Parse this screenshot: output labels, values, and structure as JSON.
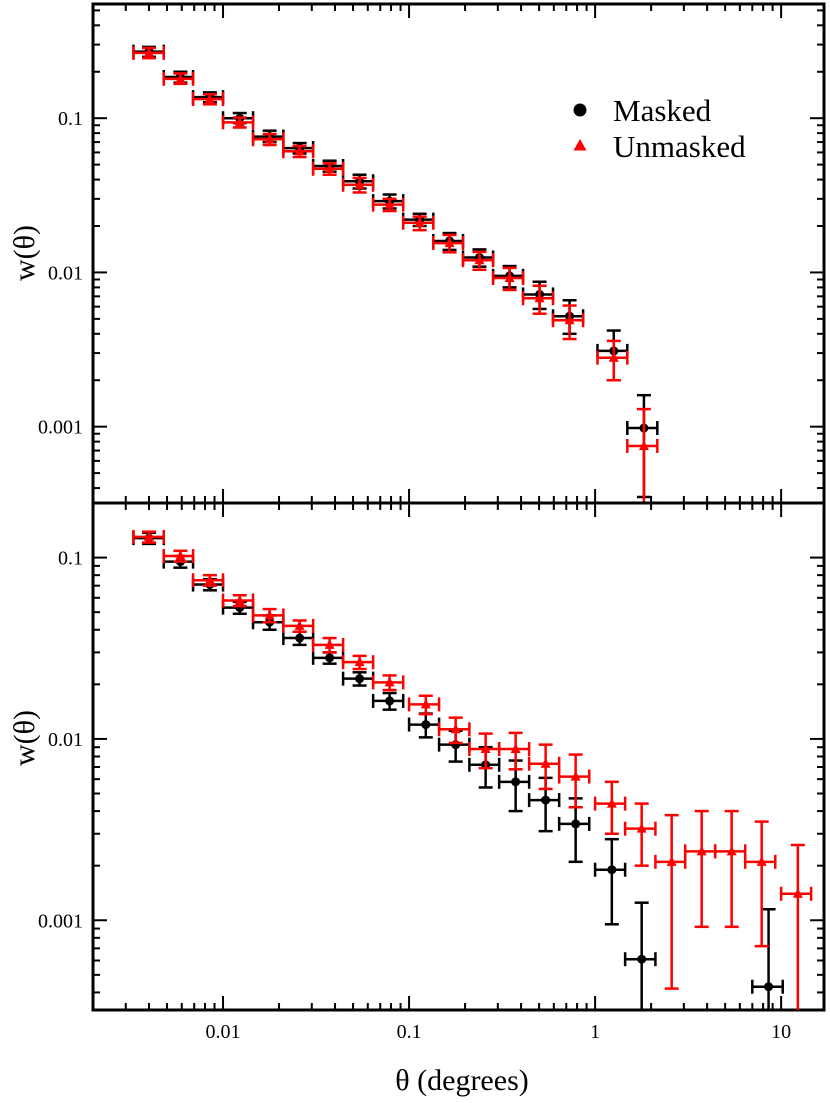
{
  "figure": {
    "xlabel": "θ (degrees)"
  },
  "legend": {
    "entries": [
      {
        "label": "Masked",
        "color": "#000000",
        "marker": "circle"
      },
      {
        "label": "Unmasked",
        "color": "#ff0000",
        "marker": "triangle"
      }
    ]
  },
  "chart_data": [
    {
      "type": "scatter",
      "panel": "top",
      "title": "",
      "xlabel": "θ (degrees)",
      "ylabel": "w(θ)",
      "xscale": "log",
      "yscale": "log",
      "xlim": [
        0.002,
        17
      ],
      "ylim": [
        0.00032,
        0.55
      ],
      "xticks": [
        {
          "value": 0.01,
          "label": "0.01"
        },
        {
          "value": 0.1,
          "label": "0.1"
        },
        {
          "value": 1,
          "label": "1"
        },
        {
          "value": 10,
          "label": "10"
        }
      ],
      "yticks": [
        {
          "value": 0.001,
          "label": "0.001"
        },
        {
          "value": 0.01,
          "label": "0.01"
        },
        {
          "value": 0.1,
          "label": "0.1"
        }
      ],
      "legend_position": "top-right",
      "series": [
        {
          "name": "Masked",
          "color": "#000000",
          "marker": "circle",
          "x": [
            0.004,
            0.0059,
            0.0085,
            0.0123,
            0.0178,
            0.0258,
            0.0374,
            0.0542,
            0.0786,
            0.114,
            0.165,
            0.239,
            0.347,
            0.503,
            0.729,
            1.26,
            1.83
          ],
          "y": [
            0.27,
            0.185,
            0.137,
            0.1,
            0.076,
            0.064,
            0.049,
            0.039,
            0.029,
            0.022,
            0.016,
            0.0125,
            0.0095,
            0.0072,
            0.0052,
            0.0031,
            0.00098
          ],
          "yerr_low": [
            0.25,
            0.17,
            0.127,
            0.093,
            0.07,
            0.059,
            0.045,
            0.035,
            0.026,
            0.02,
            0.014,
            0.0109,
            0.008,
            0.0058,
            0.004,
            0.002,
            0.00035
          ],
          "yerr_high": [
            0.29,
            0.2,
            0.147,
            0.108,
            0.083,
            0.069,
            0.053,
            0.043,
            0.032,
            0.024,
            0.018,
            0.0141,
            0.011,
            0.0087,
            0.0066,
            0.0042,
            0.0016
          ],
          "xerr_low": [
            0.0033,
            0.0048,
            0.0069,
            0.01,
            0.0145,
            0.0211,
            0.0305,
            0.0442,
            0.0641,
            0.093,
            0.135,
            0.195,
            0.283,
            0.41,
            0.594,
            1.03,
            1.49
          ],
          "xerr_high": [
            0.0048,
            0.0069,
            0.01,
            0.0145,
            0.0211,
            0.0305,
            0.0442,
            0.0641,
            0.093,
            0.135,
            0.195,
            0.283,
            0.41,
            0.594,
            0.862,
            1.49,
            2.16
          ]
        },
        {
          "name": "Unmasked",
          "color": "#ff0000",
          "marker": "triangle",
          "x": [
            0.004,
            0.0059,
            0.0085,
            0.0123,
            0.0178,
            0.0258,
            0.0374,
            0.0542,
            0.0786,
            0.114,
            0.165,
            0.239,
            0.347,
            0.503,
            0.729,
            1.26,
            1.83
          ],
          "y": [
            0.265,
            0.18,
            0.133,
            0.094,
            0.073,
            0.061,
            0.047,
            0.037,
            0.0275,
            0.021,
            0.0155,
            0.012,
            0.0092,
            0.0068,
            0.0049,
            0.0028,
            0.00075
          ],
          "yerr_low": [
            0.245,
            0.167,
            0.123,
            0.087,
            0.067,
            0.056,
            0.043,
            0.033,
            0.025,
            0.0188,
            0.0135,
            0.0104,
            0.0077,
            0.0054,
            0.0037,
            0.002,
            0.00032
          ],
          "yerr_high": [
            0.285,
            0.195,
            0.143,
            0.101,
            0.079,
            0.066,
            0.051,
            0.041,
            0.03,
            0.023,
            0.0175,
            0.0136,
            0.0107,
            0.0082,
            0.0061,
            0.0036,
            0.0013
          ],
          "xerr_low": [
            0.0033,
            0.0048,
            0.0069,
            0.01,
            0.0145,
            0.0211,
            0.0305,
            0.0442,
            0.0641,
            0.093,
            0.135,
            0.195,
            0.283,
            0.41,
            0.594,
            1.03,
            1.49
          ],
          "xerr_high": [
            0.0048,
            0.0069,
            0.01,
            0.0145,
            0.0211,
            0.0305,
            0.0442,
            0.0641,
            0.093,
            0.135,
            0.195,
            0.283,
            0.41,
            0.594,
            0.862,
            1.49,
            2.16
          ]
        }
      ]
    },
    {
      "type": "scatter",
      "panel": "bottom",
      "title": "",
      "xlabel": "θ (degrees)",
      "ylabel": "w(θ)",
      "xscale": "log",
      "yscale": "log",
      "xlim": [
        0.002,
        17
      ],
      "ylim": [
        0.00032,
        0.2
      ],
      "xticks": [
        {
          "value": 0.01,
          "label": "0.01"
        },
        {
          "value": 0.1,
          "label": "0.1"
        },
        {
          "value": 1,
          "label": "1"
        },
        {
          "value": 10,
          "label": "10"
        }
      ],
      "yticks": [
        {
          "value": 0.001,
          "label": "0.001"
        },
        {
          "value": 0.01,
          "label": "0.01"
        },
        {
          "value": 0.1,
          "label": "0.1"
        }
      ],
      "series": [
        {
          "name": "Masked",
          "color": "#000000",
          "marker": "circle",
          "x": [
            0.004,
            0.0059,
            0.0085,
            0.0123,
            0.0178,
            0.0258,
            0.0374,
            0.0542,
            0.0786,
            0.123,
            0.178,
            0.258,
            0.374,
            0.542,
            0.786,
            1.23,
            1.78,
            8.56
          ],
          "y": [
            0.128,
            0.095,
            0.071,
            0.053,
            0.044,
            0.036,
            0.028,
            0.0215,
            0.0162,
            0.012,
            0.0093,
            0.0072,
            0.0058,
            0.0046,
            0.0034,
            0.0019,
            0.00061,
            0.00043
          ],
          "yerr_low": [
            0.119,
            0.088,
            0.066,
            0.049,
            0.04,
            0.033,
            0.026,
            0.0197,
            0.0145,
            0.0102,
            0.0075,
            0.0054,
            0.004,
            0.0031,
            0.0021,
            0.00095,
            0.00032,
            0.00032
          ],
          "yerr_high": [
            0.137,
            0.102,
            0.076,
            0.057,
            0.048,
            0.039,
            0.03,
            0.0233,
            0.0179,
            0.0138,
            0.0111,
            0.009,
            0.0076,
            0.0061,
            0.0047,
            0.0028,
            0.00125,
            0.00115
          ],
          "xerr_low": [
            0.0033,
            0.0048,
            0.0069,
            0.01,
            0.0145,
            0.0211,
            0.0305,
            0.0442,
            0.0641,
            0.1,
            0.145,
            0.211,
            0.305,
            0.442,
            0.641,
            1.0,
            1.45,
            7.0
          ],
          "xerr_high": [
            0.0048,
            0.0069,
            0.01,
            0.0145,
            0.0211,
            0.0305,
            0.0442,
            0.0641,
            0.093,
            0.145,
            0.211,
            0.305,
            0.442,
            0.641,
            0.93,
            1.45,
            2.11,
            10.2
          ]
        },
        {
          "name": "Unmasked",
          "color": "#ff0000",
          "marker": "triangle",
          "x": [
            0.004,
            0.0059,
            0.0085,
            0.0123,
            0.0178,
            0.0258,
            0.0374,
            0.0542,
            0.0786,
            0.123,
            0.178,
            0.258,
            0.374,
            0.542,
            0.786,
            1.23,
            1.78,
            2.58,
            3.74,
            5.42,
            7.86,
            12.3
          ],
          "y": [
            0.13,
            0.102,
            0.075,
            0.058,
            0.048,
            0.042,
            0.033,
            0.0265,
            0.0205,
            0.0155,
            0.0113,
            0.0088,
            0.0088,
            0.0073,
            0.0062,
            0.0044,
            0.0032,
            0.0021,
            0.0024,
            0.0024,
            0.0021,
            0.0014
          ],
          "yerr_low": [
            0.121,
            0.095,
            0.07,
            0.054,
            0.044,
            0.039,
            0.03,
            0.0243,
            0.0186,
            0.0137,
            0.0095,
            0.0069,
            0.0068,
            0.0053,
            0.0042,
            0.003,
            0.002,
            0.00042,
            0.00092,
            0.00092,
            0.00072,
            0.00032
          ],
          "yerr_high": [
            0.139,
            0.109,
            0.08,
            0.062,
            0.052,
            0.045,
            0.036,
            0.0287,
            0.0224,
            0.0173,
            0.0131,
            0.0107,
            0.0108,
            0.0093,
            0.0082,
            0.0058,
            0.0044,
            0.0038,
            0.004,
            0.004,
            0.0035,
            0.0026
          ],
          "xerr_low": [
            0.0033,
            0.0048,
            0.0069,
            0.01,
            0.0145,
            0.0211,
            0.0305,
            0.0442,
            0.0641,
            0.1,
            0.145,
            0.211,
            0.305,
            0.442,
            0.641,
            1.0,
            1.45,
            2.11,
            3.05,
            4.42,
            6.41,
            10.0
          ],
          "xerr_high": [
            0.0048,
            0.0069,
            0.01,
            0.0145,
            0.0211,
            0.0305,
            0.0442,
            0.0641,
            0.093,
            0.145,
            0.211,
            0.305,
            0.442,
            0.641,
            0.93,
            1.45,
            2.11,
            3.05,
            4.42,
            6.41,
            9.3,
            14.5
          ]
        }
      ]
    }
  ]
}
